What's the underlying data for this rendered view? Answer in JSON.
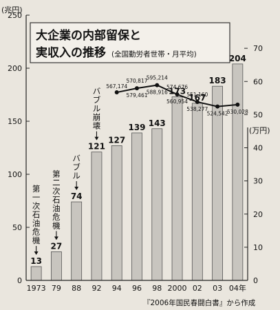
{
  "chart_data": {
    "type": "bar",
    "title_line1": "大企業の内部留保と",
    "title_line2": "実収入の推移",
    "subtitle": "(全国勤労者世帯・月平均)",
    "left_unit": "(兆円)",
    "right_unit": "(万円)",
    "categories": [
      "1973",
      "79",
      "88",
      "92",
      "94",
      "96",
      "98",
      "2000",
      "02",
      "03",
      "04年"
    ],
    "values": [
      13,
      27,
      74,
      121,
      127,
      139,
      143,
      173,
      167,
      183,
      204
    ],
    "value_labels": [
      "13",
      "27",
      "74",
      "121",
      "127",
      "139",
      "143",
      "173",
      "167",
      "183",
      "204"
    ],
    "ylim": [
      0,
      250
    ],
    "yticks": [
      0,
      50,
      100,
      150,
      200,
      250
    ],
    "right_ylim": [
      0,
      80
    ],
    "right_yticks": [
      0,
      10,
      20,
      30,
      40,
      50,
      60,
      70
    ],
    "line_series": {
      "categories": [
        "94",
        "96",
        "98",
        "2000",
        "02",
        "03",
        "04年"
      ],
      "values": [
        56.7174,
        57.9461,
        58.8916,
        56.0954,
        53.8277,
        52.4542,
        53.0028
      ],
      "labels_above": [
        "",
        "570,817",
        "595,214",
        "574,676",
        "551,160",
        "",
        ""
      ],
      "labels_below": [
        "567,174",
        "579,461",
        "588,916",
        "560,954",
        "538,277",
        "524,542",
        "530,028"
      ]
    },
    "annotations": [
      {
        "text": "第一次石油危機",
        "category": "1973"
      },
      {
        "text": "第二次石油危機",
        "category": "79"
      },
      {
        "text": "バブル",
        "category": "88"
      },
      {
        "text": "バブル崩壊",
        "category": "92"
      }
    ],
    "source": "『2006年国民春闘白書』から作成",
    "colors": {
      "bar_fill": "#c8c5bf",
      "bar_stroke": "#555555",
      "line": "#111111",
      "background": "#eae6de"
    }
  }
}
